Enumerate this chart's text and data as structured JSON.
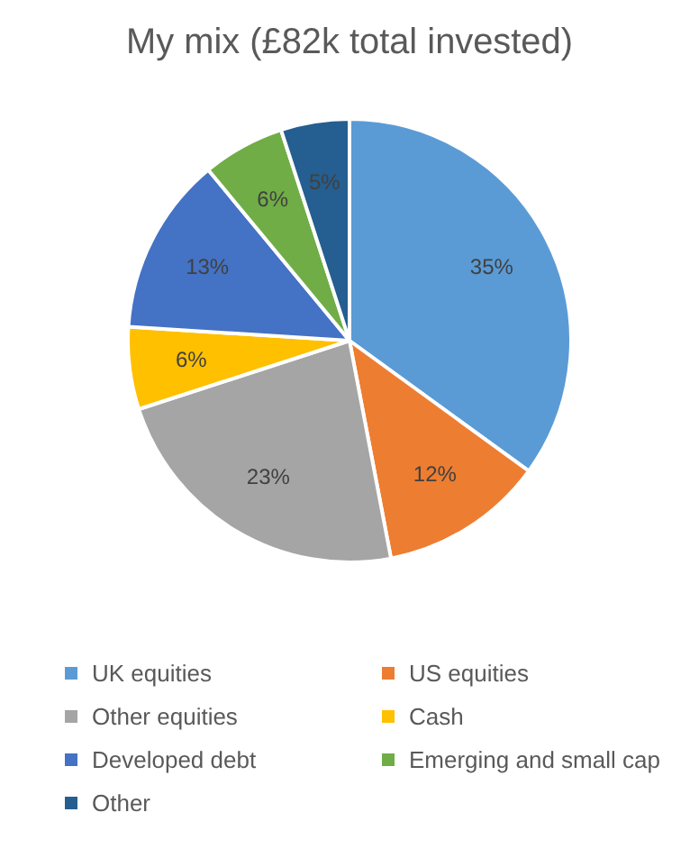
{
  "chart_data": {
    "type": "pie",
    "title": "My mix (£82k total invested)",
    "categories": [
      "UK equities",
      "US equities",
      "Other equities",
      "Cash",
      "Developed debt",
      "Emerging and small cap",
      "Other"
    ],
    "values": [
      35,
      12,
      23,
      6,
      13,
      6,
      5
    ],
    "colors": [
      "#5b9bd5",
      "#ed7d31",
      "#a5a5a5",
      "#ffc000",
      "#4472c4",
      "#70ad47",
      "#255e91"
    ],
    "value_labels": [
      "35%",
      "12%",
      "23%",
      "6%",
      "13%",
      "6%",
      "5%"
    ],
    "legend": "bottom"
  }
}
